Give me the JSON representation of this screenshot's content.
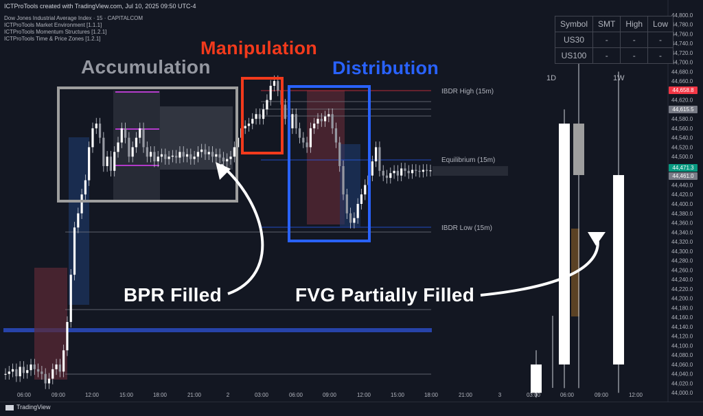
{
  "header": {
    "credit": "ICTProTools created with TradingView.com, Jul 10, 2025 09:50 UTC-4",
    "symbol_line": "Dow Jones Industrial Average Index · 15 · CAPITALCOM",
    "indicators": [
      "ICTProTools Market Environment [1.1.1]",
      "ICTProTools Momentum Structures [1.2.1]",
      "ICTProTools Time & Price Zones [1.2.1]"
    ]
  },
  "annotations": {
    "accumulation": "Accumulation",
    "manipulation": "Manipulation",
    "distribution": "Distribution",
    "bpr": "BPR Filled",
    "fvg": "FVG Partially Filled"
  },
  "level_labels": {
    "ibdr_high": "IBDR High (15m)",
    "equilibrium": "Equilibrium (15m)",
    "ibdr_low": "IBDR Low (15m)"
  },
  "smt_table": {
    "headers": [
      "Symbol",
      "SMT",
      "High",
      "Low"
    ],
    "rows": [
      [
        "US30",
        "-",
        "-",
        "-"
      ],
      [
        "US100",
        "-",
        "-",
        "-"
      ]
    ]
  },
  "htf_labels": {
    "d1": "1D",
    "w1": "1W"
  },
  "price_tags": [
    {
      "value": "44,658.8",
      "color": "#f23645"
    },
    {
      "value": "44,615.5",
      "color": "#787b86"
    },
    {
      "value": "44,471.3",
      "color": "#089981"
    },
    {
      "value": "44,461.0",
      "color": "#787b86"
    }
  ],
  "footer": {
    "brand": "TradingView"
  },
  "chart_data": {
    "type": "candlestick",
    "y_axis": {
      "ticks": [
        44800,
        44780,
        44760,
        44740,
        44720,
        44700,
        44680,
        44660,
        44640,
        44620,
        44600,
        44580,
        44560,
        44540,
        44520,
        44500,
        44480,
        44460,
        44440,
        44420,
        44400,
        44380,
        44360,
        44340,
        44320,
        44300,
        44280,
        44260,
        44240,
        44220,
        44200,
        44180,
        44160,
        44140,
        44120,
        44100,
        44080,
        44060,
        44040,
        44020,
        44000
      ],
      "range": [
        43980,
        44820
      ]
    },
    "x_axis": {
      "ticks": [
        "06:00",
        "09:00",
        "12:00",
        "15:00",
        "18:00",
        "21:00",
        "2",
        "03:00",
        "06:00",
        "09:00",
        "12:00",
        "15:00",
        "18:00",
        "21:00",
        "3",
        "03:00",
        "06:00",
        "09:00",
        "12:00"
      ]
    },
    "levels": {
      "ibdr_high": 44658.8,
      "equilibrium": 44500,
      "ibdr_low": 44340
    },
    "htf_candles": [
      {
        "open": 44000,
        "close": 44060,
        "high": 44090,
        "low": 43990,
        "color": "white"
      },
      {
        "open": 44060,
        "close": 44570,
        "high": 44600,
        "low": 44010,
        "color": "white"
      },
      {
        "open": 44570,
        "close": 44461,
        "high": 44700,
        "low": 44010,
        "color": "gray"
      },
      {
        "open": 44060,
        "close": 44461,
        "high": 44680,
        "low": 44000,
        "color": "white"
      }
    ]
  }
}
